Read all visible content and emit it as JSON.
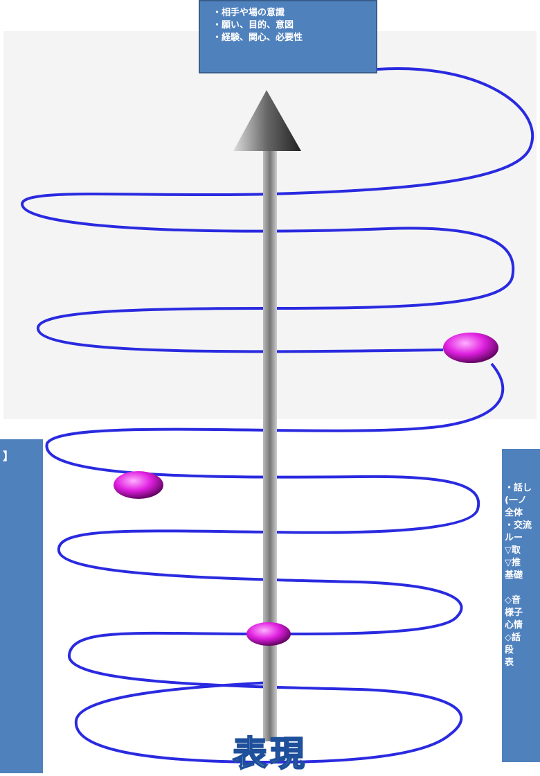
{
  "top_box": {
    "lines": [
      "・相手や場の意識",
      "・願い、目的、意図",
      "・経験、関心、必要性"
    ]
  },
  "left_box": {
    "lines": [
      "】"
    ]
  },
  "right_box": {
    "lines": [
      "・話し",
      "(一ノ",
      "全体",
      "・交流",
      "ルー",
      "▽取",
      "▽推",
      "基礎",
      "◇音",
      "様子",
      "心情",
      "◇話",
      "段",
      "表"
    ]
  },
  "center_label": "表現"
}
